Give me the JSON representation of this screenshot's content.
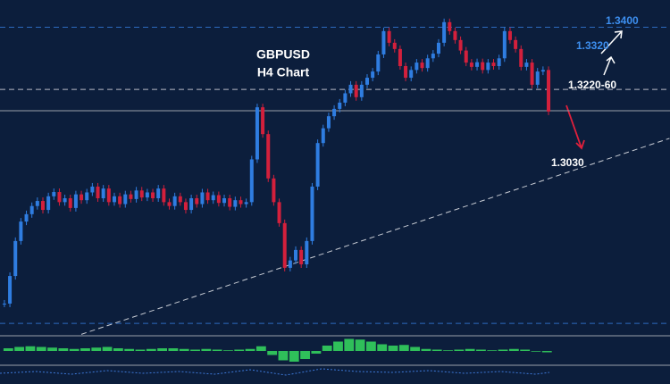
{
  "chart_data": {
    "type": "candlestick",
    "title": "GBPUSD",
    "subtitle": "H4 Chart",
    "values": [
      1.2689,
      1.276,
      1.285,
      1.29,
      1.2919,
      1.294,
      1.2953,
      1.293,
      1.2965,
      1.2976,
      1.295,
      1.296,
      1.2935,
      1.297,
      1.2955,
      1.2975,
      1.299,
      1.296,
      1.2985,
      1.295,
      1.2965,
      1.2945,
      1.297,
      1.2958,
      1.298,
      1.2962,
      1.2975,
      1.296,
      1.2985,
      1.295,
      1.294,
      1.2965,
      1.295,
      1.293,
      1.296,
      1.2945,
      1.2975,
      1.2955,
      1.2968,
      1.2948,
      1.296,
      1.2938,
      1.2955,
      1.2945,
      1.295,
      1.306,
      1.3194,
      1.3125,
      1.3011,
      1.295,
      1.2896,
      1.2781,
      1.28,
      1.2827,
      1.279,
      1.285,
      1.299,
      1.3102,
      1.314,
      1.3171,
      1.319,
      1.3206,
      1.323,
      1.3252,
      1.322,
      1.3252,
      1.327,
      1.3286,
      1.333,
      1.339,
      1.336,
      1.3344,
      1.33,
      1.327,
      1.329,
      1.3309,
      1.3295,
      1.332,
      1.3332,
      1.336,
      1.3413,
      1.339,
      1.3367,
      1.334,
      1.3309,
      1.3298,
      1.331,
      1.329,
      1.3309,
      1.33,
      1.332,
      1.339,
      1.3367,
      1.3344,
      1.3298,
      1.3309,
      1.3252,
      1.3286,
      1.329,
      1.3183
    ],
    "up_color": "#2f7de1",
    "down_color": "#d3203c",
    "xlim": [
      -0.8,
      121.1
    ],
    "ylim": [
      1.262,
      1.347
    ],
    "levels": [
      {
        "value": 1.34,
        "style": "dashed",
        "color": "#2d6bbf"
      },
      {
        "value": 1.324,
        "style": "dashed",
        "color": "#b8bcc6"
      },
      {
        "value": 1.3185,
        "style": "solid",
        "color": "#9aa0aa"
      },
      {
        "value": 1.2638,
        "style": "dashed",
        "color": "#2d6bbf"
      }
    ],
    "trendline": {
      "x": [
        14,
        121
      ],
      "values": [
        1.261,
        1.3114
      ],
      "color": "#c8ccd4"
    },
    "annotations": [
      {
        "text": "1.3400",
        "color": "#3d8ff0"
      },
      {
        "text": "1.3320",
        "color": "#3d8ff0"
      },
      {
        "text": "1.3220-60",
        "color": "#ffffff"
      },
      {
        "text": "1.3030",
        "color": "#ffffff"
      }
    ],
    "oscillator": {
      "color": "#2fbf5a",
      "ylim": [
        -1,
        1
      ],
      "values": [
        0.2,
        0.3,
        0.35,
        0.3,
        0.25,
        0.2,
        0.15,
        0.2,
        0.25,
        0.3,
        0.2,
        0.15,
        0.1,
        0.15,
        0.2,
        0.2,
        0.15,
        0.1,
        0.15,
        0.1,
        0.05,
        0.1,
        0.15,
        0.35,
        -0.3,
        -0.7,
        -0.8,
        -0.6,
        -0.2,
        0.4,
        0.7,
        0.9,
        0.85,
        0.7,
        0.5,
        0.4,
        0.45,
        0.3,
        0.15,
        0.1,
        0.05,
        0.1,
        0.15,
        0.1,
        0.05,
        0.1,
        0.15,
        0.1,
        -0.05,
        -0.1
      ]
    }
  }
}
